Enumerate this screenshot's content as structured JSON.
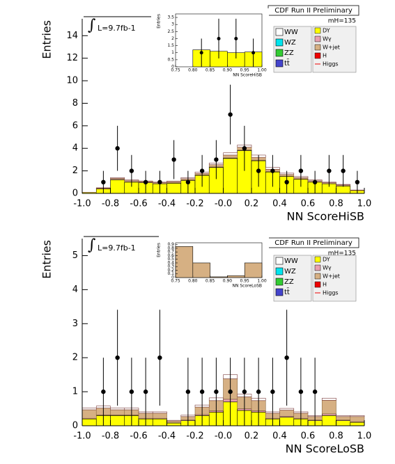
{
  "chart_data": [
    {
      "type": "histogram",
      "header": "CDF Run II Preliminary",
      "mass_label": "mH=135",
      "lumi_label": "L=9.7fb-1",
      "x_label": "NN ScoreHiSB",
      "y_label": "Entries",
      "bins": [
        -1,
        -0.9,
        -0.8,
        -0.7,
        -0.6,
        -0.5,
        -0.4,
        -0.3,
        -0.2,
        -0.1,
        0,
        0.1,
        0.2,
        0.3,
        0.4,
        0.5,
        0.6,
        0.7,
        0.8,
        0.9,
        1
      ],
      "series": [
        {
          "name": "DY",
          "color": "#ffff00",
          "values": [
            0.08,
            0.4,
            1.2,
            1.0,
            0.95,
            0.85,
            0.9,
            1.15,
            1.6,
            2.3,
            3.1,
            3.8,
            2.9,
            1.9,
            1.5,
            1.25,
            1.0,
            0.85,
            0.65,
            0.25
          ]
        },
        {
          "name": "Wγ",
          "color": "#e8a0b0",
          "values": [
            0,
            0.02,
            0.03,
            0.03,
            0.02,
            0.02,
            0.03,
            0.03,
            0.04,
            0.05,
            0.05,
            0.05,
            0.05,
            0.04,
            0.03,
            0.03,
            0.02,
            0.02,
            0.02,
            0
          ]
        },
        {
          "name": "W+jet",
          "color": "#d6b083",
          "values": [
            0.02,
            0.05,
            0.1,
            0.1,
            0.08,
            0.08,
            0.1,
            0.12,
            0.14,
            0.2,
            0.25,
            0.25,
            0.25,
            0.2,
            0.15,
            0.12,
            0.1,
            0.08,
            0.08,
            0.03
          ]
        },
        {
          "name": "WW",
          "color": "#ffffff",
          "values": [
            0,
            0.03,
            0.07,
            0.07,
            0.05,
            0.05,
            0.07,
            0.1,
            0.12,
            0.15,
            0.2,
            0.2,
            0.2,
            0.16,
            0.12,
            0.1,
            0.08,
            0.05,
            0.05,
            0.02
          ]
        }
      ],
      "legend_extra": [
        {
          "name": "WZ",
          "color": "#00e5ee"
        },
        {
          "name": "ZZ",
          "color": "#33cc33"
        },
        {
          "name": "tt̄",
          "color": "#4444cc"
        },
        {
          "name": "H",
          "color": "#ee0000"
        },
        {
          "name": "Higgs",
          "color": "#ee0000"
        }
      ],
      "data": {
        "values": [
          null,
          1,
          4,
          2,
          1,
          1,
          3,
          1,
          2,
          3,
          7,
          4,
          2,
          2,
          1,
          2,
          1,
          2,
          2,
          1
        ],
        "errors": [
          null,
          1,
          2,
          1.41,
          1,
          1,
          1.73,
          1,
          1.41,
          1.73,
          2.65,
          2,
          1.41,
          1.41,
          1,
          1.41,
          1,
          1.41,
          1.41,
          1
        ]
      },
      "xlim": [
        -1,
        1
      ],
      "ylim": [
        0,
        15.5
      ],
      "xticks": [
        {
          "value": -1,
          "label": "-1.0"
        },
        -0.8,
        -0.6,
        -0.4,
        -0.2,
        {
          "value": 0,
          "label": "-0.0"
        },
        0.2,
        0.4,
        0.6,
        0.8,
        {
          "value": 1,
          "label": "1.0"
        }
      ],
      "yticks": [
        0,
        2,
        4,
        6,
        8,
        10,
        12,
        14
      ],
      "inset": {
        "x_label": "NN ScoreHiSB",
        "y_label": "Entries",
        "bins": [
          0.75,
          0.8,
          0.85,
          0.9,
          0.95,
          1
        ],
        "values": [
          0,
          1.2,
          1.1,
          1.0,
          1.05
        ],
        "data": [
          null,
          1,
          2,
          2,
          1
        ],
        "errors": [
          null,
          1,
          1.41,
          1.41,
          1
        ],
        "xlim": [
          0.75,
          1
        ],
        "ylim": [
          0,
          3.75
        ],
        "xticks": [
          0.75,
          {
            "value": 0.8,
            "label": "0.80"
          },
          0.85,
          {
            "value": 0.9,
            "label": "0.90"
          },
          0.95,
          {
            "value": 1,
            "label": "1.00"
          }
        ],
        "yticks": [
          0,
          0.5,
          1,
          1.5,
          2,
          2.5,
          3,
          3.5
        ]
      }
    },
    {
      "type": "histogram",
      "header": "CDF Run II Preliminary",
      "mass_label": "mH=135",
      "lumi_label": "L=9.7fb-1",
      "x_label": "NN ScoreLoSB",
      "y_label": "Entries",
      "bins": [
        -1,
        -0.9,
        -0.8,
        -0.7,
        -0.6,
        -0.5,
        -0.4,
        -0.3,
        -0.2,
        -0.1,
        0,
        0.1,
        0.2,
        0.3,
        0.4,
        0.5,
        0.6,
        0.7,
        0.8,
        0.9,
        1
      ],
      "series": [
        {
          "name": "DY",
          "color": "#ffff00",
          "values": [
            0.2,
            0.3,
            0.3,
            0.3,
            0.2,
            0.2,
            0.08,
            0.15,
            0.3,
            0.4,
            0.7,
            0.45,
            0.4,
            0.2,
            0.25,
            0.2,
            0.15,
            0.3,
            0.15,
            0.1
          ]
        },
        {
          "name": "Wγ",
          "color": "#e8a0b0",
          "values": [
            0.02,
            0.02,
            0.02,
            0.02,
            0.02,
            0.02,
            0.01,
            0.02,
            0.03,
            0.04,
            0.08,
            0.05,
            0.04,
            0.02,
            0.03,
            0.02,
            0.02,
            0.05,
            0.02,
            0.02
          ]
        },
        {
          "name": "W+jet",
          "color": "#d6b083",
          "values": [
            0.25,
            0.2,
            0.15,
            0.15,
            0.15,
            0.15,
            0.05,
            0.1,
            0.22,
            0.3,
            0.6,
            0.35,
            0.3,
            0.15,
            0.18,
            0.15,
            0.1,
            0.4,
            0.1,
            0.15
          ]
        },
        {
          "name": "WW",
          "color": "#ffffff",
          "values": [
            0.05,
            0.06,
            0.05,
            0.05,
            0.04,
            0.04,
            0.02,
            0.04,
            0.06,
            0.08,
            0.12,
            0.08,
            0.07,
            0.04,
            0.05,
            0.04,
            0.03,
            0.06,
            0.03,
            0.03
          ]
        }
      ],
      "legend_extra": [
        {
          "name": "WZ",
          "color": "#00e5ee"
        },
        {
          "name": "ZZ",
          "color": "#33cc33"
        },
        {
          "name": "tt̄",
          "color": "#4444cc"
        },
        {
          "name": "H",
          "color": "#ee0000"
        },
        {
          "name": "Higgs",
          "color": "#ee0000"
        }
      ],
      "data": {
        "values": [
          null,
          1,
          2,
          1,
          1,
          2,
          null,
          1,
          1,
          1,
          1,
          1,
          1,
          1,
          2,
          1,
          1,
          null,
          null,
          null
        ],
        "errors": [
          null,
          1,
          1.41,
          1,
          1,
          1.41,
          null,
          1,
          1,
          1,
          1,
          1,
          1,
          1,
          1.41,
          1,
          1,
          null,
          null,
          null
        ]
      },
      "xlim": [
        -1,
        1
      ],
      "ylim": [
        0,
        5.5
      ],
      "xticks": [
        {
          "value": -1,
          "label": "-1.0"
        },
        -0.8,
        -0.6,
        -0.4,
        -0.2,
        {
          "value": 0,
          "label": "-0.0"
        },
        0.2,
        0.4,
        0.6,
        0.8,
        {
          "value": 1,
          "label": "1.0"
        }
      ],
      "yticks": [
        0,
        1,
        2,
        3,
        4,
        5
      ],
      "inset": {
        "x_label": "NN ScoreLoSB",
        "y_label": "Entries",
        "bins": [
          0.75,
          0.8,
          0.85,
          0.9,
          0.95,
          1
        ],
        "values": [
          0.85,
          0.4,
          0.02,
          0.05,
          0.4
        ],
        "data": [
          null,
          null,
          null,
          null,
          null
        ],
        "errors": [
          null,
          null,
          null,
          null,
          null
        ],
        "xlim": [
          0.75,
          1
        ],
        "ylim": [
          0,
          0.95
        ],
        "xticks": [
          0.75,
          {
            "value": 0.8,
            "label": "0.80"
          },
          0.85,
          {
            "value": 0.9,
            "label": "0.90"
          },
          0.95,
          {
            "value": 1,
            "label": "1.00"
          }
        ],
        "yticks": [
          0,
          0.1,
          0.2,
          0.3,
          0.4,
          0.5,
          0.6,
          0.7,
          0.8,
          0.9
        ]
      }
    }
  ]
}
